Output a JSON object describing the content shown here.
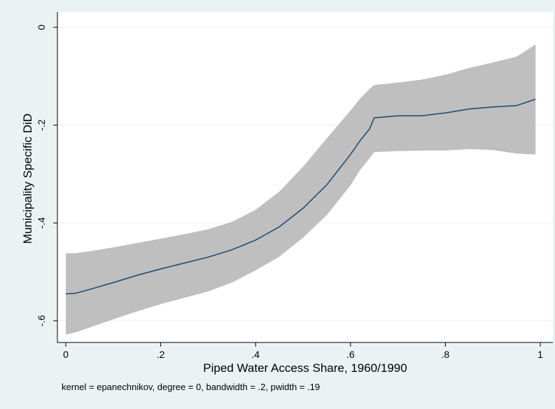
{
  "chart_data": {
    "type": "line",
    "title": "",
    "xlabel": "Piped Water Access Share, 1960/1990",
    "ylabel": "Municipality Specific DiD",
    "note": "kernel = epanechnikov, degree = 0, bandwidth = .2, pwidth = .19",
    "xlim": [
      0,
      1
    ],
    "ylim": [
      -0.64,
      0.01
    ],
    "x_ticks": [
      0,
      0.2,
      0.4,
      0.6,
      0.8,
      1
    ],
    "x_tick_labels": [
      "0",
      ".2",
      ".4",
      ".6",
      ".8",
      "1"
    ],
    "y_ticks": [
      0,
      -0.2,
      -0.4,
      -0.6
    ],
    "y_tick_labels": [
      "0",
      "-.2",
      "-.4",
      "-.6"
    ],
    "grid": true,
    "legend": "none",
    "series": [
      {
        "x": [
          0,
          0.02,
          0.05,
          0.1,
          0.15,
          0.2,
          0.25,
          0.3,
          0.35,
          0.4,
          0.45,
          0.5,
          0.55,
          0.6,
          0.62,
          0.64,
          0.65,
          0.7,
          0.75,
          0.8,
          0.85,
          0.9,
          0.95,
          0.99
        ],
        "y": [
          -0.545,
          -0.544,
          -0.536,
          -0.522,
          -0.507,
          -0.494,
          -0.482,
          -0.47,
          -0.455,
          -0.435,
          -0.408,
          -0.37,
          -0.322,
          -0.26,
          -0.232,
          -0.208,
          -0.185,
          -0.181,
          -0.181,
          -0.175,
          -0.167,
          -0.163,
          -0.16,
          -0.147
        ],
        "ci_upper": [
          -0.462,
          -0.462,
          -0.458,
          -0.45,
          -0.441,
          -0.432,
          -0.423,
          -0.413,
          -0.398,
          -0.373,
          -0.336,
          -0.285,
          -0.227,
          -0.17,
          -0.146,
          -0.126,
          -0.118,
          -0.113,
          -0.107,
          -0.097,
          -0.083,
          -0.072,
          -0.06,
          -0.035
        ],
        "ci_lower": [
          -0.628,
          -0.624,
          -0.614,
          -0.597,
          -0.581,
          -0.566,
          -0.553,
          -0.54,
          -0.522,
          -0.497,
          -0.469,
          -0.43,
          -0.384,
          -0.323,
          -0.292,
          -0.268,
          -0.255,
          -0.253,
          -0.252,
          -0.252,
          -0.249,
          -0.251,
          -0.258,
          -0.26
        ]
      }
    ],
    "colors": {
      "outer_background": "#eaf2f3",
      "plot_background": "#ffffff",
      "ci_band": "#bfbfbf",
      "line": "#1a476f",
      "grid": "#eaf2f3"
    }
  }
}
